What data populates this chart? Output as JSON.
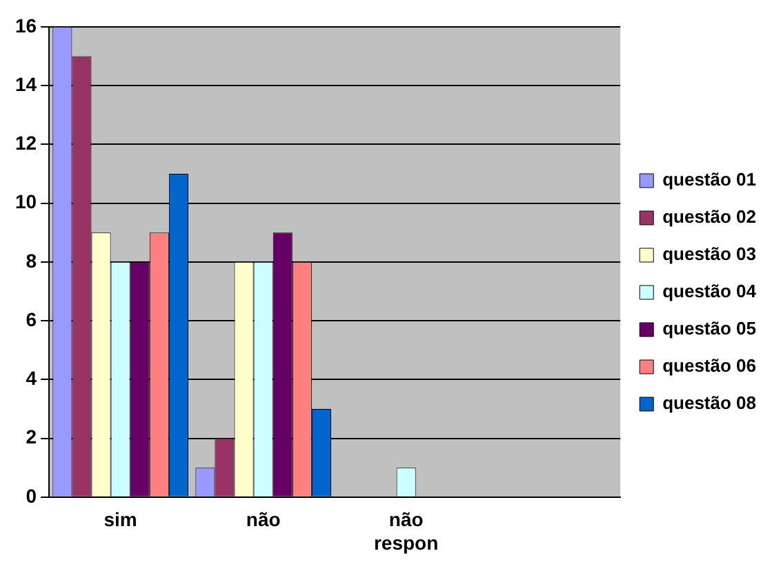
{
  "chart_data": {
    "type": "bar",
    "categories": [
      "sim",
      "não",
      "não respon",
      null
    ],
    "series": [
      {
        "name": "questão 01",
        "color": "#9999ff",
        "values": [
          16,
          1,
          0,
          0
        ]
      },
      {
        "name": "questão 02",
        "color": "#993366",
        "values": [
          15,
          2,
          0,
          0
        ]
      },
      {
        "name": "questão 03",
        "color": "#ffffcc",
        "values": [
          9,
          8,
          0,
          0
        ]
      },
      {
        "name": "questão 04",
        "color": "#ccffff",
        "values": [
          8,
          8,
          1,
          0
        ]
      },
      {
        "name": "questão 05",
        "color": "#660066",
        "values": [
          8,
          9,
          0,
          0
        ]
      },
      {
        "name": "questão 06",
        "color": "#ff8080",
        "values": [
          9,
          8,
          0,
          0
        ]
      },
      {
        "name": "questão 08",
        "color": "#0066cc",
        "values": [
          11,
          3,
          0,
          0
        ]
      }
    ],
    "ylim": [
      0,
      16
    ],
    "yticks": [
      0,
      2,
      4,
      6,
      8,
      10,
      12,
      14,
      16
    ],
    "grid": "y",
    "legend": "right"
  }
}
